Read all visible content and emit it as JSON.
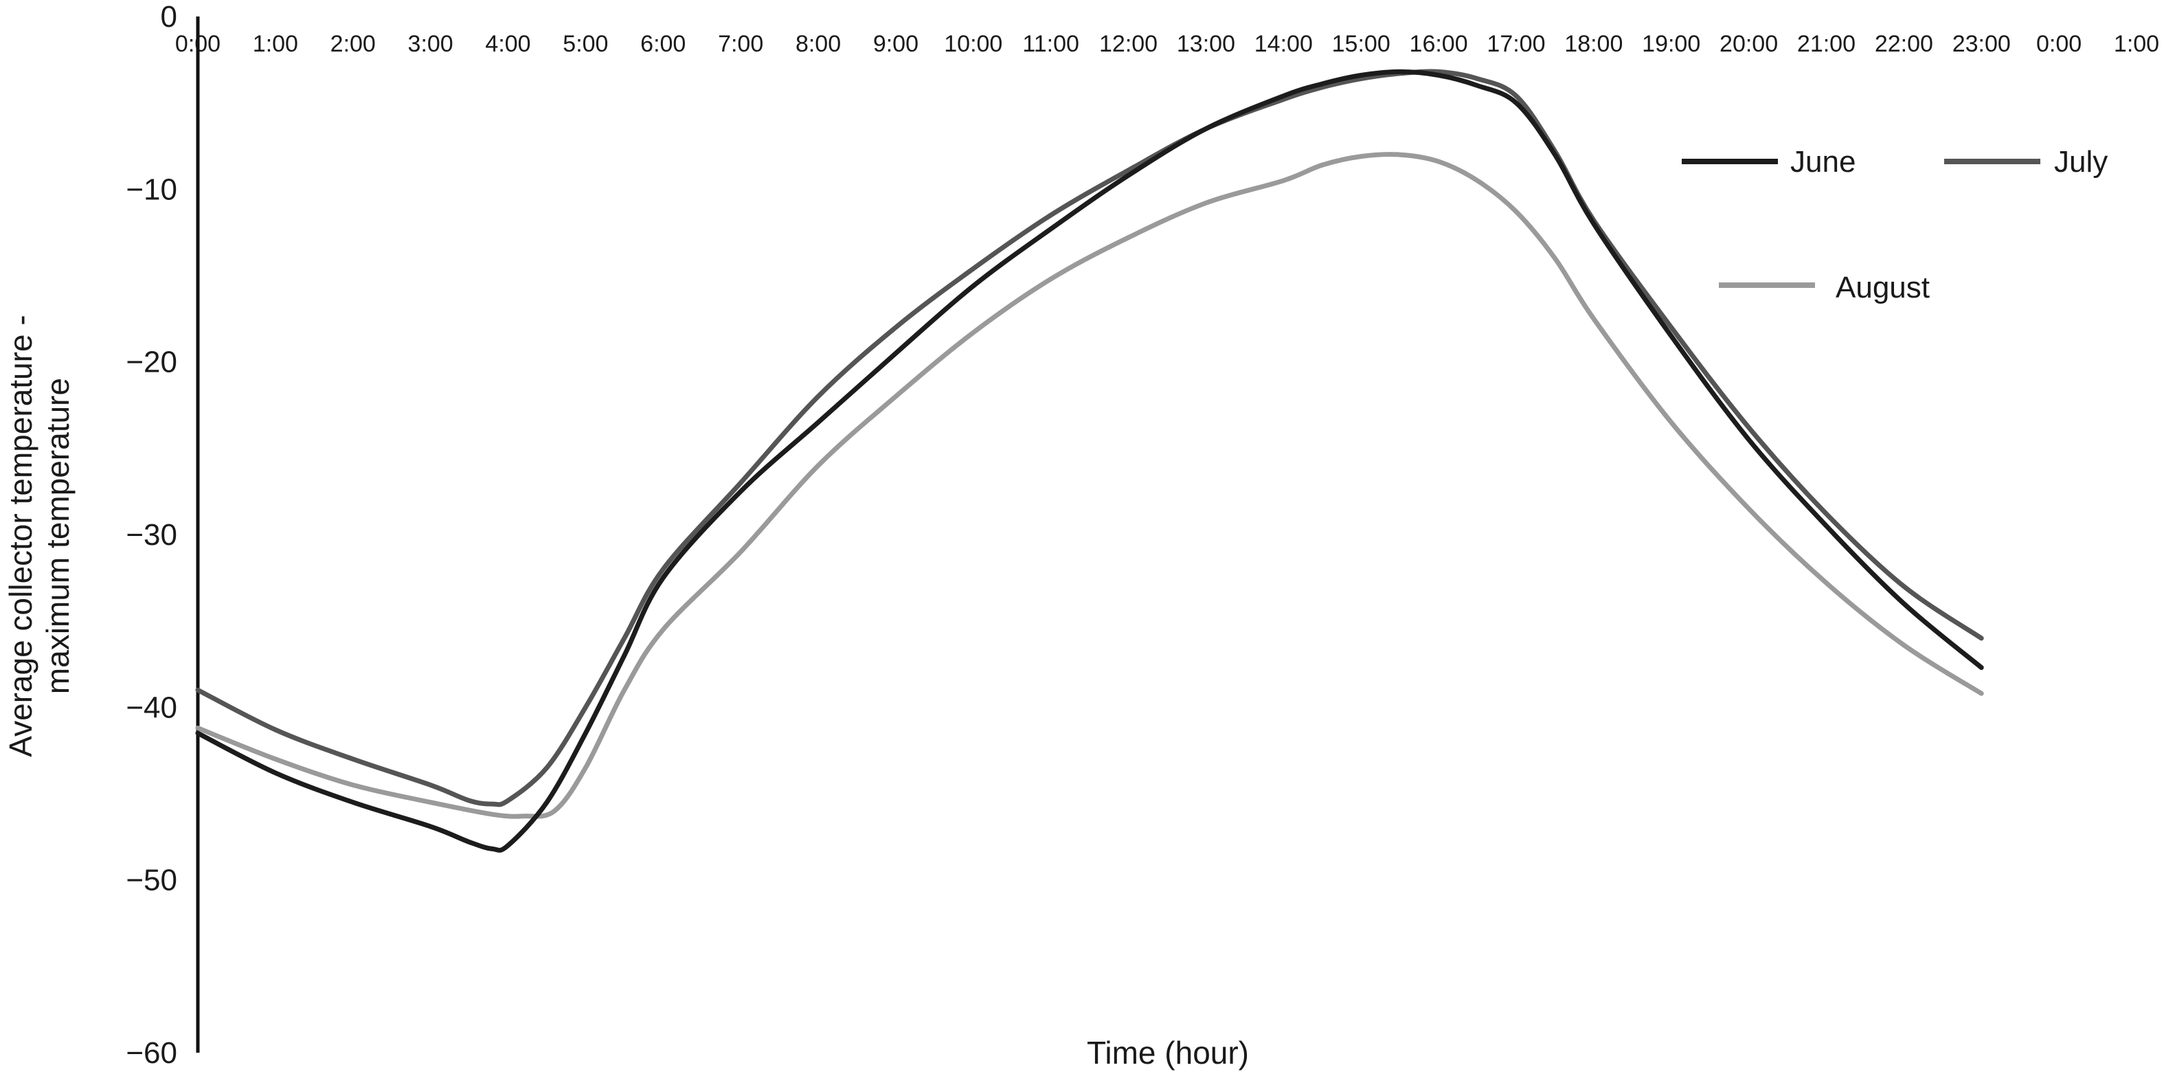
{
  "chart_data": {
    "type": "line",
    "title": "",
    "xlabel": "Time (hour)",
    "ylabel_lines": [
      "Average collector temperature -",
      "maximum temperature"
    ],
    "x_ticks": [
      "0:00",
      "1:00",
      "2:00",
      "3:00",
      "4:00",
      "5:00",
      "6:00",
      "7:00",
      "8:00",
      "9:00",
      "10:00",
      "11:00",
      "12:00",
      "13:00",
      "14:00",
      "15:00",
      "16:00",
      "17:00",
      "18:00",
      "19:00",
      "20:00",
      "21:00",
      "22:00",
      "23:00",
      "0:00",
      "1:00"
    ],
    "y_ticks": [
      "0",
      "−10",
      "−20",
      "−30",
      "−40",
      "−50",
      "−60"
    ],
    "y_tick_values": [
      0,
      -10,
      -20,
      -30,
      -40,
      -50,
      -60
    ],
    "xlim": [
      0,
      25
    ],
    "ylim": [
      -60,
      0
    ],
    "grid": false,
    "legend_position": "top-right",
    "series": [
      {
        "name": "June",
        "color": "#1c1c1c",
        "x": [
          0,
          1,
          2,
          3,
          3.5,
          3.8,
          4.0,
          4.5,
          5,
          5.5,
          6,
          7,
          8,
          9,
          10,
          11,
          12,
          13,
          14,
          14.5,
          15,
          15.5,
          16,
          16.5,
          17,
          17.5,
          18,
          19,
          20,
          21,
          22,
          23
        ],
        "y": [
          -41.5,
          -43.8,
          -45.5,
          -46.9,
          -47.8,
          -48.2,
          -48.0,
          -45.5,
          -41.5,
          -37.0,
          -32.5,
          -27.5,
          -23.5,
          -19.5,
          -15.6,
          -12.3,
          -9.2,
          -6.5,
          -4.6,
          -3.9,
          -3.4,
          -3.2,
          -3.4,
          -4.0,
          -5.0,
          -8.0,
          -12.0,
          -18.5,
          -24.5,
          -29.5,
          -34.0,
          -37.7
        ]
      },
      {
        "name": "July",
        "color": "#555555",
        "x": [
          0,
          1,
          2,
          3,
          3.5,
          3.8,
          4.0,
          4.5,
          5,
          5.5,
          6,
          7,
          8,
          9,
          10,
          11,
          12,
          13,
          14,
          14.5,
          15,
          15.5,
          16,
          16.5,
          17,
          17.5,
          18,
          19,
          20,
          21,
          22,
          23
        ],
        "y": [
          -39.0,
          -41.3,
          -43.0,
          -44.5,
          -45.4,
          -45.6,
          -45.4,
          -43.5,
          -40.0,
          -36.0,
          -32.0,
          -27.0,
          -22.0,
          -18.0,
          -14.6,
          -11.5,
          -8.9,
          -6.5,
          -4.8,
          -4.1,
          -3.6,
          -3.3,
          -3.2,
          -3.6,
          -4.6,
          -7.8,
          -11.8,
          -18.0,
          -23.8,
          -28.8,
          -33.0,
          -36.0
        ]
      },
      {
        "name": "August",
        "color": "#9a9a9a",
        "x": [
          0,
          1,
          2,
          3,
          3.8,
          4.2,
          4.6,
          5,
          5.5,
          6,
          7,
          8,
          9,
          10,
          11,
          12,
          13,
          14,
          14.5,
          15,
          15.5,
          16,
          16.5,
          17,
          17.5,
          18,
          19,
          20,
          21,
          22,
          23
        ],
        "y": [
          -41.2,
          -43.0,
          -44.5,
          -45.5,
          -46.2,
          -46.3,
          -46.0,
          -43.5,
          -39.0,
          -35.5,
          -31.0,
          -26.0,
          -22.0,
          -18.3,
          -15.2,
          -12.8,
          -10.8,
          -9.5,
          -8.6,
          -8.1,
          -8.0,
          -8.4,
          -9.5,
          -11.3,
          -14.0,
          -17.5,
          -23.5,
          -28.5,
          -32.8,
          -36.4,
          -39.2
        ]
      }
    ]
  }
}
